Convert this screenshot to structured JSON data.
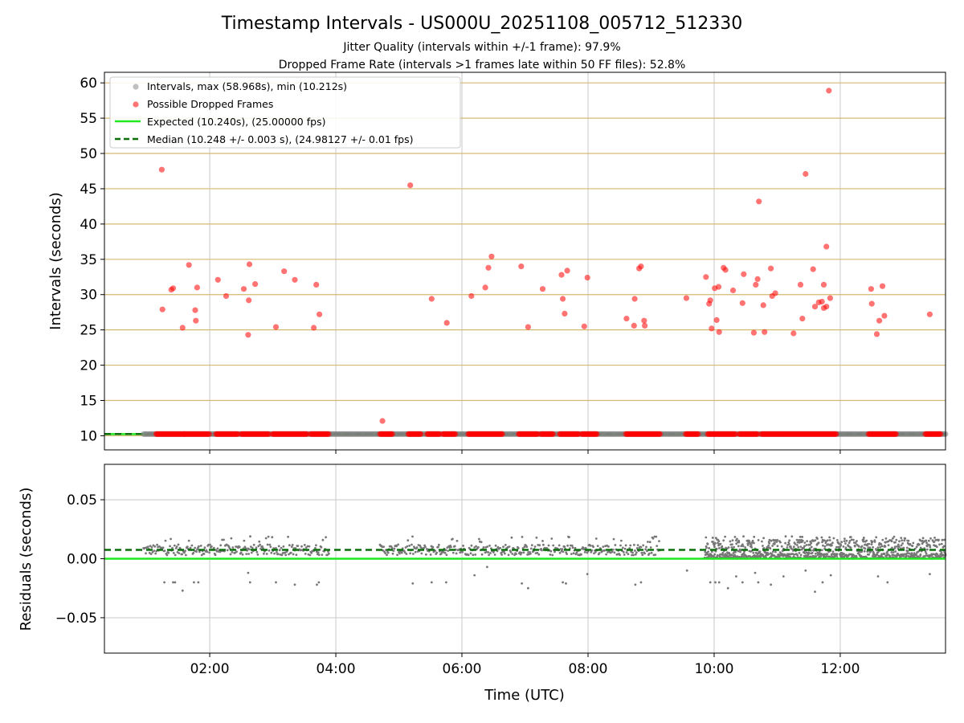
{
  "chart_data": [
    {
      "type": "scatter",
      "title": "Timestamp Intervals - US000U_20251108_005712_512330",
      "subtitle_lines": [
        "Jitter Quality (intervals within +/-1 frame): 97.9%",
        "Dropped Frame Rate (intervals >1 frames late within 50 FF files): 52.8%"
      ],
      "xlabel": "",
      "ylabel": "Intervals (seconds)",
      "xlim": [
        0.33,
        13.67
      ],
      "ylim": [
        8,
        61.5
      ],
      "yticks": [
        10,
        15,
        20,
        25,
        30,
        35,
        40,
        45,
        50,
        55,
        60
      ],
      "grid": true,
      "legend_position": "top-left",
      "legend": [
        "Intervals, max (58.968s), min (10.212s)",
        "Possible Dropped Frames",
        "Expected (10.240s), (25.00000 fps)",
        "Median (10.248 +/- 0.003 s), (24.98127 +/- 0.01 fps)"
      ],
      "expected_interval": 10.24,
      "median_interval": 10.248,
      "normal_band": {
        "x_start": 0.95,
        "x_end": 13.67,
        "y": 10.24
      },
      "dropped_segments": [
        {
          "start": 1.15,
          "end": 1.6
        },
        {
          "start": 1.6,
          "end": 2.0
        },
        {
          "start": 2.1,
          "end": 2.45
        },
        {
          "start": 2.5,
          "end": 2.95
        },
        {
          "start": 3.0,
          "end": 3.55
        },
        {
          "start": 3.6,
          "end": 3.9
        },
        {
          "start": 4.7,
          "end": 4.9
        },
        {
          "start": 5.15,
          "end": 5.35
        },
        {
          "start": 5.45,
          "end": 5.65
        },
        {
          "start": 5.7,
          "end": 5.9
        },
        {
          "start": 6.1,
          "end": 6.65
        },
        {
          "start": 6.9,
          "end": 7.2
        },
        {
          "start": 7.25,
          "end": 7.45
        },
        {
          "start": 7.55,
          "end": 7.85
        },
        {
          "start": 7.9,
          "end": 8.15
        },
        {
          "start": 8.6,
          "end": 9.15
        },
        {
          "start": 9.55,
          "end": 9.75
        },
        {
          "start": 9.9,
          "end": 10.35
        },
        {
          "start": 10.4,
          "end": 10.7
        },
        {
          "start": 10.75,
          "end": 11.2
        },
        {
          "start": 11.2,
          "end": 11.5
        },
        {
          "start": 11.5,
          "end": 11.95
        },
        {
          "start": 12.45,
          "end": 12.9
        },
        {
          "start": 13.35,
          "end": 13.6
        }
      ],
      "dropped_points": [
        [
          1.24,
          47.7
        ],
        [
          1.25,
          27.9
        ],
        [
          1.39,
          30.7
        ],
        [
          1.42,
          30.9
        ],
        [
          1.57,
          25.3
        ],
        [
          1.67,
          34.2
        ],
        [
          1.77,
          27.8
        ],
        [
          1.78,
          26.3
        ],
        [
          1.8,
          31.0
        ],
        [
          2.13,
          32.1
        ],
        [
          2.26,
          29.8
        ],
        [
          2.54,
          30.8
        ],
        [
          2.61,
          24.3
        ],
        [
          2.62,
          29.2
        ],
        [
          2.63,
          34.3
        ],
        [
          2.72,
          31.5
        ],
        [
          3.05,
          25.4
        ],
        [
          3.18,
          33.3
        ],
        [
          3.35,
          32.1
        ],
        [
          3.65,
          25.3
        ],
        [
          3.69,
          31.4
        ],
        [
          3.74,
          27.2
        ],
        [
          4.74,
          12.1
        ],
        [
          5.18,
          45.5
        ],
        [
          5.52,
          29.4
        ],
        [
          5.76,
          26.0
        ],
        [
          6.15,
          29.8
        ],
        [
          6.37,
          31.0
        ],
        [
          6.42,
          33.8
        ],
        [
          6.47,
          35.4
        ],
        [
          6.94,
          34.0
        ],
        [
          7.05,
          25.4
        ],
        [
          7.28,
          30.8
        ],
        [
          7.58,
          32.8
        ],
        [
          7.6,
          29.4
        ],
        [
          7.63,
          27.3
        ],
        [
          7.67,
          33.4
        ],
        [
          7.94,
          25.5
        ],
        [
          7.99,
          32.4
        ],
        [
          8.61,
          26.6
        ],
        [
          8.73,
          25.6
        ],
        [
          8.74,
          29.4
        ],
        [
          8.81,
          33.7
        ],
        [
          8.84,
          34.0
        ],
        [
          8.89,
          26.3
        ],
        [
          8.9,
          25.6
        ],
        [
          9.56,
          29.5
        ],
        [
          9.87,
          32.5
        ],
        [
          9.92,
          28.7
        ],
        [
          9.94,
          29.2
        ],
        [
          9.96,
          25.2
        ],
        [
          10.01,
          30.9
        ],
        [
          10.04,
          26.4
        ],
        [
          10.07,
          31.1
        ],
        [
          10.08,
          24.7
        ],
        [
          10.15,
          33.8
        ],
        [
          10.18,
          33.5
        ],
        [
          10.3,
          30.6
        ],
        [
          10.45,
          28.8
        ],
        [
          10.47,
          32.9
        ],
        [
          10.63,
          24.6
        ],
        [
          10.66,
          31.4
        ],
        [
          10.69,
          32.2
        ],
        [
          10.71,
          43.2
        ],
        [
          10.78,
          28.5
        ],
        [
          10.8,
          24.7
        ],
        [
          10.9,
          33.7
        ],
        [
          10.92,
          29.8
        ],
        [
          10.97,
          30.2
        ],
        [
          11.26,
          24.5
        ],
        [
          11.37,
          31.4
        ],
        [
          11.4,
          26.6
        ],
        [
          11.45,
          47.1
        ],
        [
          11.57,
          33.6
        ],
        [
          11.6,
          28.3
        ],
        [
          11.66,
          28.9
        ],
        [
          11.71,
          29.0
        ],
        [
          11.74,
          28.1
        ],
        [
          11.74,
          31.4
        ],
        [
          11.78,
          28.3
        ],
        [
          11.78,
          36.8
        ],
        [
          11.82,
          58.9
        ],
        [
          11.84,
          29.5
        ],
        [
          12.49,
          30.8
        ],
        [
          12.5,
          28.7
        ],
        [
          12.58,
          24.4
        ],
        [
          12.62,
          26.3
        ],
        [
          12.67,
          31.2
        ],
        [
          12.7,
          27.0
        ],
        [
          13.42,
          27.2
        ]
      ]
    },
    {
      "type": "scatter",
      "xlabel": "Time (UTC)",
      "ylabel": "Residuals (seconds)",
      "xlim": [
        0.33,
        13.67
      ],
      "ylim": [
        -0.08,
        0.08
      ],
      "yticks": [
        -0.05,
        0.0,
        0.05
      ],
      "ytick_labels": [
        "−0.05",
        "0.00",
        "0.05"
      ],
      "xticks": [
        2,
        4,
        6,
        8,
        10,
        12
      ],
      "xtick_labels": [
        "02:00",
        "04:00",
        "06:00",
        "08:00",
        "10:00",
        "12:00"
      ],
      "grid": true,
      "expected_residual": 0.0,
      "median_residual": 0.0075,
      "segments": [
        {
          "start": 0.95,
          "end": 3.9,
          "sparse": true
        },
        {
          "start": 4.7,
          "end": 9.15,
          "sparse": true
        },
        {
          "start": 9.85,
          "end": 13.67,
          "sparse": false
        }
      ],
      "outliers": [
        [
          1.28,
          -0.02
        ],
        [
          1.42,
          -0.02
        ],
        [
          1.45,
          -0.02
        ],
        [
          1.57,
          -0.027
        ],
        [
          1.75,
          -0.02
        ],
        [
          1.82,
          -0.02
        ],
        [
          2.61,
          -0.012
        ],
        [
          2.64,
          -0.02
        ],
        [
          3.05,
          -0.02
        ],
        [
          3.35,
          -0.022
        ],
        [
          3.7,
          -0.022
        ],
        [
          3.73,
          -0.02
        ],
        [
          5.22,
          -0.021
        ],
        [
          5.52,
          -0.02
        ],
        [
          5.75,
          -0.02
        ],
        [
          6.2,
          -0.014
        ],
        [
          6.4,
          -0.007
        ],
        [
          6.95,
          -0.021
        ],
        [
          7.05,
          -0.025
        ],
        [
          7.6,
          -0.02
        ],
        [
          7.65,
          -0.021
        ],
        [
          7.99,
          -0.013
        ],
        [
          8.75,
          -0.022
        ],
        [
          8.84,
          -0.02
        ],
        [
          9.57,
          -0.01
        ],
        [
          9.94,
          -0.02
        ],
        [
          10.02,
          -0.02
        ],
        [
          10.08,
          -0.02
        ],
        [
          10.22,
          -0.025
        ],
        [
          10.35,
          -0.015
        ],
        [
          10.45,
          -0.02
        ],
        [
          10.65,
          -0.012
        ],
        [
          10.7,
          -0.02
        ],
        [
          10.9,
          -0.022
        ],
        [
          11.1,
          -0.015
        ],
        [
          11.45,
          -0.01
        ],
        [
          11.6,
          -0.028
        ],
        [
          11.72,
          -0.02
        ],
        [
          11.85,
          -0.014
        ],
        [
          12.6,
          -0.015
        ],
        [
          12.75,
          -0.02
        ],
        [
          13.42,
          -0.013
        ]
      ]
    }
  ]
}
